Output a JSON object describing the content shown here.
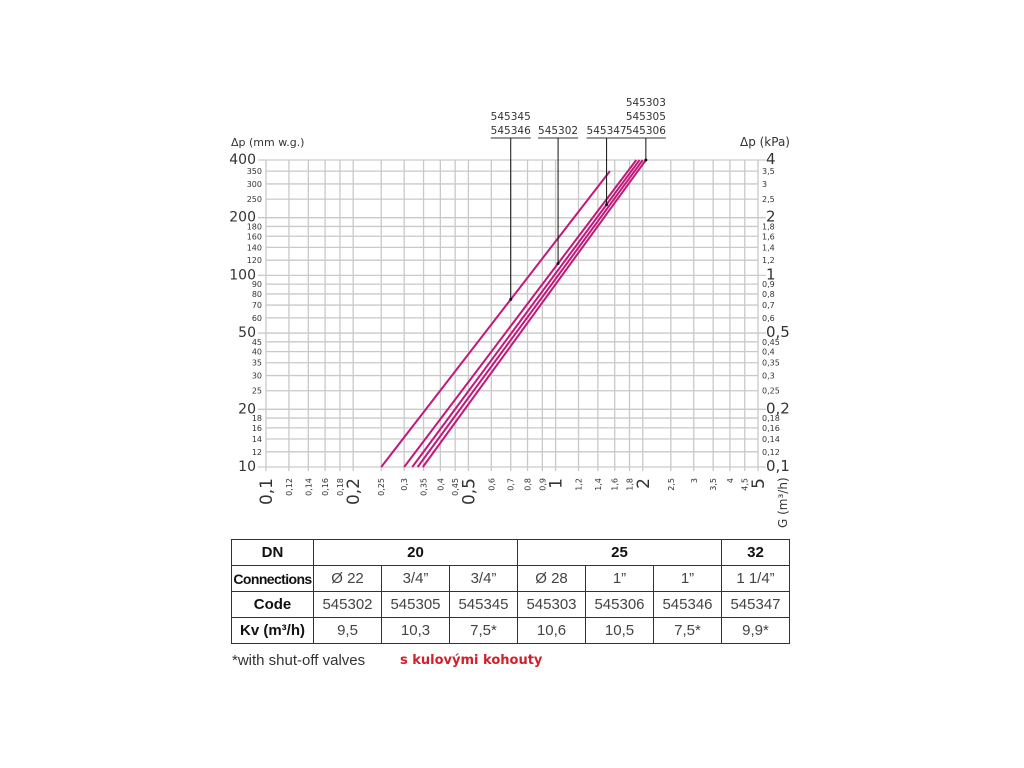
{
  "chart_data": {
    "type": "line",
    "title": "",
    "xlabel": "G (m³/h)",
    "ylabel_left": "Δp (mm w.g.)",
    "ylabel_right": "Δp (kPa)",
    "x_scale": "log",
    "y_scale": "log",
    "xlim": [
      0.1,
      5
    ],
    "ylim_left": [
      10,
      400
    ],
    "ylim_right": [
      0.1,
      4
    ],
    "grid": true,
    "line_color": "#c2187a",
    "x_ticks": [
      {
        "v": 0.1,
        "label": "0,1",
        "major": true
      },
      {
        "v": 0.12,
        "label": "0,12"
      },
      {
        "v": 0.14,
        "label": "0,14"
      },
      {
        "v": 0.16,
        "label": "0,16"
      },
      {
        "v": 0.18,
        "label": "0,18"
      },
      {
        "v": 0.2,
        "label": "0,2",
        "major": true
      },
      {
        "v": 0.25,
        "label": "0,25"
      },
      {
        "v": 0.3,
        "label": "0,3"
      },
      {
        "v": 0.35,
        "label": "0,35"
      },
      {
        "v": 0.4,
        "label": "0,4"
      },
      {
        "v": 0.45,
        "label": "0,45"
      },
      {
        "v": 0.5,
        "label": "0,5",
        "major": true
      },
      {
        "v": 0.6,
        "label": "0,6"
      },
      {
        "v": 0.7,
        "label": "0,7"
      },
      {
        "v": 0.8,
        "label": "0,8"
      },
      {
        "v": 0.9,
        "label": "0,9"
      },
      {
        "v": 1,
        "label": "1",
        "major": true
      },
      {
        "v": 1.2,
        "label": "1,2"
      },
      {
        "v": 1.4,
        "label": "1,4"
      },
      {
        "v": 1.6,
        "label": "1,6"
      },
      {
        "v": 1.8,
        "label": "1,8"
      },
      {
        "v": 2,
        "label": "2",
        "major": true
      },
      {
        "v": 2.5,
        "label": "2,5"
      },
      {
        "v": 3,
        "label": "3"
      },
      {
        "v": 3.5,
        "label": "3,5"
      },
      {
        "v": 4,
        "label": "4"
      },
      {
        "v": 4.5,
        "label": "4,5"
      },
      {
        "v": 5,
        "label": "5",
        "major": true
      }
    ],
    "y_ticks_left": [
      {
        "v": 10,
        "label": "10",
        "major": true
      },
      {
        "v": 12,
        "label": "12"
      },
      {
        "v": 14,
        "label": "14"
      },
      {
        "v": 16,
        "label": "16"
      },
      {
        "v": 18,
        "label": "18"
      },
      {
        "v": 20,
        "label": "20",
        "major": true
      },
      {
        "v": 25,
        "label": "25"
      },
      {
        "v": 30,
        "label": "30"
      },
      {
        "v": 35,
        "label": "35"
      },
      {
        "v": 40,
        "label": "40"
      },
      {
        "v": 45,
        "label": "45"
      },
      {
        "v": 50,
        "label": "50",
        "major": true
      },
      {
        "v": 60,
        "label": "60"
      },
      {
        "v": 70,
        "label": "70"
      },
      {
        "v": 80,
        "label": "80"
      },
      {
        "v": 90,
        "label": "90"
      },
      {
        "v": 100,
        "label": "100",
        "major": true
      },
      {
        "v": 120,
        "label": "120"
      },
      {
        "v": 140,
        "label": "140"
      },
      {
        "v": 160,
        "label": "160"
      },
      {
        "v": 180,
        "label": "180"
      },
      {
        "v": 200,
        "label": "200",
        "major": true
      },
      {
        "v": 250,
        "label": "250"
      },
      {
        "v": 300,
        "label": "300"
      },
      {
        "v": 350,
        "label": "350"
      },
      {
        "v": 400,
        "label": "400",
        "major": true
      }
    ],
    "y_ticks_right": [
      {
        "v": 10,
        "label": "0,1",
        "major": true
      },
      {
        "v": 12,
        "label": "0,12"
      },
      {
        "v": 14,
        "label": "0,14"
      },
      {
        "v": 16,
        "label": "0,16"
      },
      {
        "v": 18,
        "label": "0,18"
      },
      {
        "v": 20,
        "label": "0,2",
        "major": true
      },
      {
        "v": 25,
        "label": "0,25"
      },
      {
        "v": 30,
        "label": "0,3"
      },
      {
        "v": 35,
        "label": "0,35"
      },
      {
        "v": 40,
        "label": "0,4"
      },
      {
        "v": 45,
        "label": "0,45"
      },
      {
        "v": 50,
        "label": "0,5",
        "major": true
      },
      {
        "v": 60,
        "label": "0,6"
      },
      {
        "v": 70,
        "label": "0,7"
      },
      {
        "v": 80,
        "label": "0,8"
      },
      {
        "v": 90,
        "label": "0,9"
      },
      {
        "v": 100,
        "label": "1",
        "major": true
      },
      {
        "v": 120,
        "label": "1,2"
      },
      {
        "v": 140,
        "label": "1,4"
      },
      {
        "v": 160,
        "label": "1,6"
      },
      {
        "v": 180,
        "label": "1,8"
      },
      {
        "v": 200,
        "label": "2",
        "major": true
      },
      {
        "v": 250,
        "label": "2,5"
      },
      {
        "v": 300,
        "label": "3"
      },
      {
        "v": 350,
        "label": "3,5"
      },
      {
        "v": 400,
        "label": "4",
        "major": true
      }
    ],
    "series": [
      {
        "points": [
          [
            0.25,
            10
          ],
          [
            1.54,
            350
          ]
        ]
      },
      {
        "points": [
          [
            0.3,
            10
          ],
          [
            1.9,
            400
          ]
        ]
      },
      {
        "points": [
          [
            0.32,
            10
          ],
          [
            1.95,
            400
          ]
        ]
      },
      {
        "points": [
          [
            0.334,
            10
          ],
          [
            2.0,
            400
          ]
        ]
      },
      {
        "points": [
          [
            0.348,
            10
          ],
          [
            2.05,
            400
          ]
        ]
      }
    ],
    "annotations": [
      {
        "lines": [
          "545345",
          "545346"
        ],
        "series": 0,
        "at_x": 0.7
      },
      {
        "lines": [
          "545302"
        ],
        "series": 1,
        "at_x": 1.02
      },
      {
        "lines": [
          "545347"
        ],
        "series": 2,
        "at_x": 1.5
      },
      {
        "lines": [
          "545303",
          "545305",
          "545306"
        ],
        "series": 4,
        "at_x": 2.05
      }
    ]
  },
  "table": {
    "row_headers": [
      "DN",
      "Connections",
      "Code",
      "Kv (m³/h)"
    ],
    "dn_groups": [
      {
        "label": "20",
        "span": 3
      },
      {
        "label": "25",
        "span": 3
      },
      {
        "label": "32",
        "span": 1
      }
    ],
    "connections": [
      "Ø 22",
      "3/4”",
      "3/4”",
      "Ø 28",
      "1”",
      "1”",
      "1 1/4”"
    ],
    "codes": [
      "545302",
      "545305",
      "545345",
      "545303",
      "545306",
      "545346",
      "545347"
    ],
    "kv": [
      "9,5",
      "10,3",
      "7,5*",
      "10,6",
      "10,5",
      "7,5*",
      "9,9*"
    ]
  },
  "footnote": "*with shut-off valves",
  "footnote_cz": "s kulovými kohouty"
}
